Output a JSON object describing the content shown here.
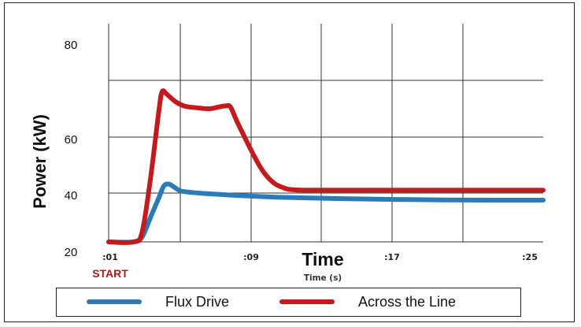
{
  "chart_data": {
    "type": "line",
    "ylabel": "Power (kW)",
    "xlabel": "Time",
    "xlabel_secondary": "Time (s)",
    "annotation": "START",
    "y_ticks": [
      "20",
      "40",
      "60",
      "80"
    ],
    "x_ticks": [
      ":01",
      ":09",
      ":17",
      ":25"
    ],
    "ylim": [
      20,
      85
    ],
    "xlim": [
      0,
      26
    ],
    "grid": true,
    "legend_position": "bottom",
    "colors": {
      "flux": "#2b7bb8",
      "across": "#c41a1e"
    },
    "series": [
      {
        "name": "Flux Drive",
        "color": "#2b7bb8",
        "points": [
          [
            0,
            20
          ],
          [
            1.5,
            20
          ],
          [
            2,
            22
          ],
          [
            2.5,
            30
          ],
          [
            3,
            38
          ],
          [
            3.3,
            42.5
          ],
          [
            3.6,
            43.2
          ],
          [
            3.9,
            42.2
          ],
          [
            4.3,
            40.8
          ],
          [
            5,
            40.2
          ],
          [
            6,
            39.7
          ],
          [
            8,
            38.9
          ],
          [
            10,
            38.3
          ],
          [
            12,
            38.0
          ],
          [
            14,
            37.7
          ],
          [
            17,
            37.4
          ],
          [
            20,
            37.2
          ],
          [
            23,
            37.1
          ],
          [
            26,
            37.1
          ]
        ]
      },
      {
        "name": "Across the Line",
        "color": "#c41a1e",
        "points": [
          [
            0,
            20
          ],
          [
            1.5,
            20
          ],
          [
            2,
            24
          ],
          [
            2.5,
            45
          ],
          [
            3,
            69
          ],
          [
            3.2,
            76
          ],
          [
            3.5,
            75
          ],
          [
            4,
            72.5
          ],
          [
            4.5,
            71
          ],
          [
            5,
            70.5
          ],
          [
            6,
            70.0
          ],
          [
            6.5,
            70.5
          ],
          [
            7,
            71
          ],
          [
            7.3,
            70.5
          ],
          [
            7.8,
            64
          ],
          [
            9,
            50
          ],
          [
            9.8,
            44
          ],
          [
            10.5,
            41.8
          ],
          [
            11,
            41.2
          ],
          [
            12,
            41.0
          ],
          [
            15,
            41.0
          ],
          [
            20,
            41.0
          ],
          [
            26,
            41.0
          ]
        ]
      }
    ]
  },
  "legend": {
    "flux_label": "Flux Drive",
    "across_label": "Across the Line"
  }
}
